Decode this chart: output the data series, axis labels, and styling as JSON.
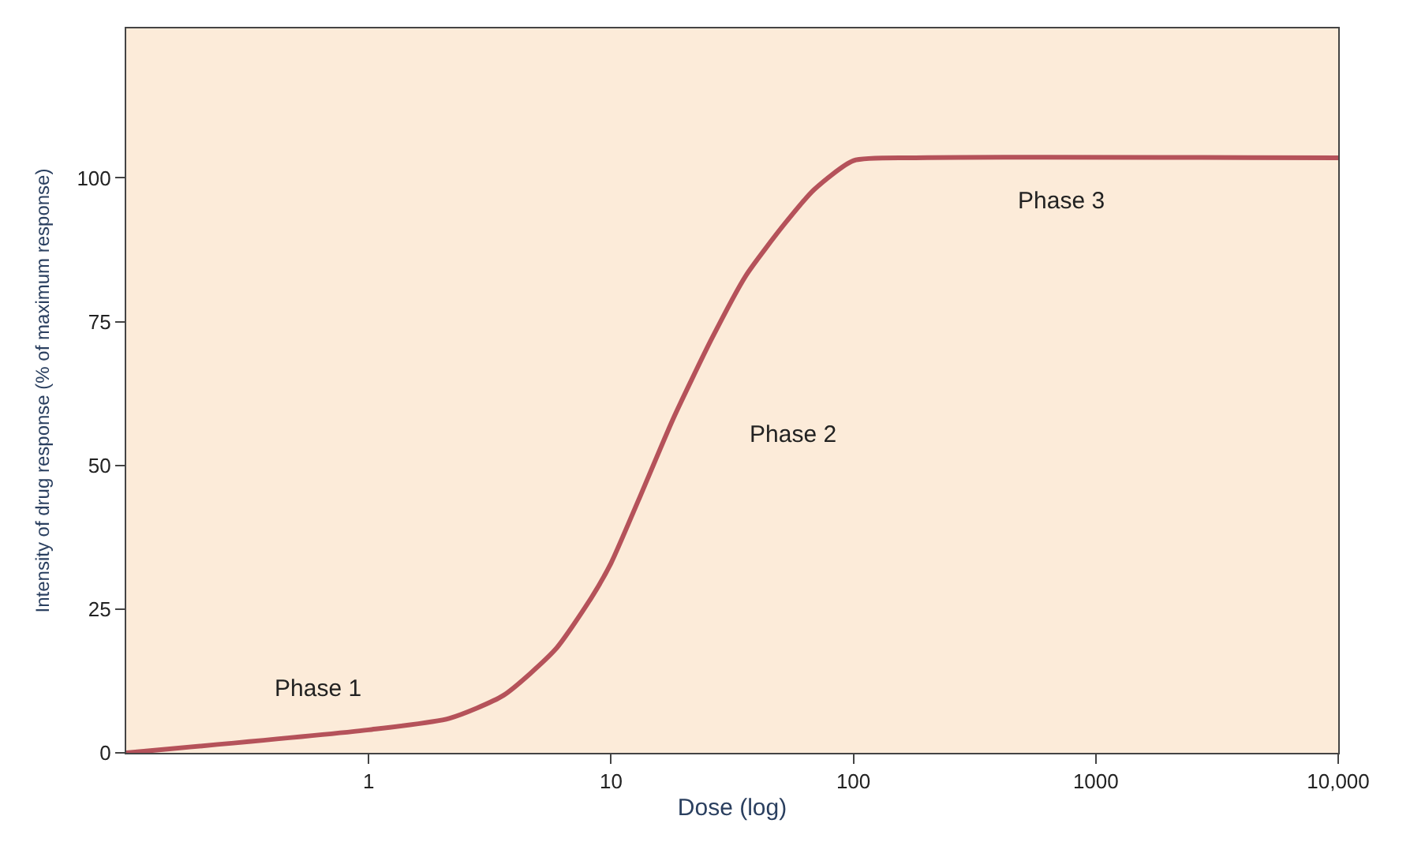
{
  "chart_data": {
    "type": "line",
    "xlabel": "Dose (log)",
    "ylabel": "Intensity of drug response (% of maximum response)",
    "x": [
      0.1,
      1,
      2.15,
      3.6,
      5.9,
      8.3,
      10,
      13,
      18,
      26,
      36,
      52,
      69,
      100,
      180,
      10000
    ],
    "series": [
      {
        "color": "#b5525a",
        "values": [
          0,
          4,
          6,
          10,
          18,
          27,
          33,
          44,
          58,
          72,
          83,
          92,
          98,
          103,
          103.5,
          103.5
        ]
      }
    ],
    "xlim": [
      0.1,
      10000
    ],
    "ylim": [
      0,
      126
    ],
    "log": "x",
    "xticks": [
      1,
      10,
      100,
      1000,
      {
        "value": 10000,
        "label": "10,000"
      }
    ],
    "yticks": [
      0,
      25,
      50,
      75,
      100
    ],
    "grid": false,
    "marker": "none",
    "line_style": "solid",
    "annotations": [
      "Phase 1",
      "Phase 2",
      "Phase 3"
    ]
  }
}
